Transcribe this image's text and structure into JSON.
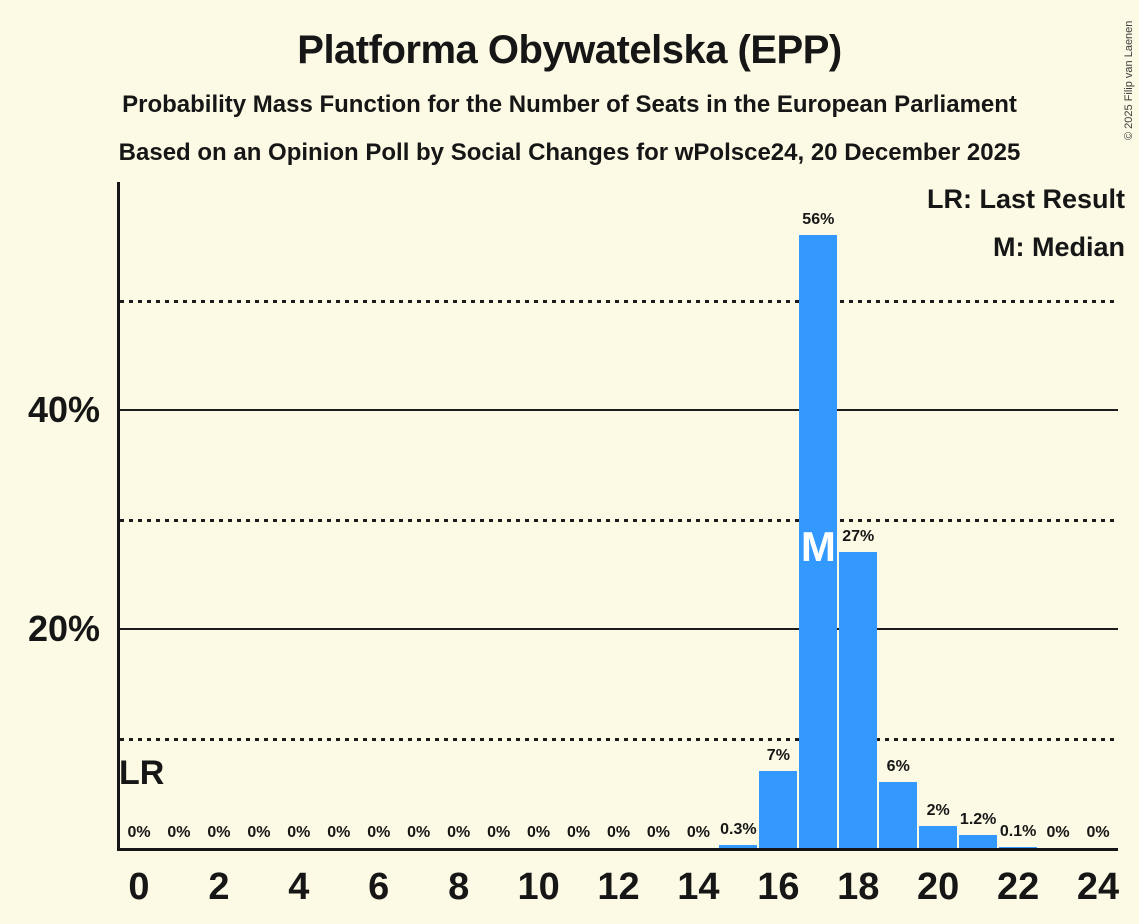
{
  "title": "Platforma Obywatelska (EPP)",
  "subtitle_line1": "Probability Mass Function for the Number of Seats in the European Parliament",
  "subtitle_line2": "Based on an Opinion Poll by Social Changes for wPolsce24, 20 December 2025",
  "legend": {
    "last_result": "LR: Last Result",
    "median": "M: Median"
  },
  "copyright": "© 2025 Filip van Laenen",
  "colors": {
    "background": "#FCF9E4",
    "bar": "#3399FF",
    "text": "#161616",
    "median_letter": "#FFFFFF"
  },
  "chart_data": {
    "type": "bar",
    "title": "Platforma Obywatelska (EPP)",
    "x": [
      0,
      1,
      2,
      3,
      4,
      5,
      6,
      7,
      8,
      9,
      10,
      11,
      12,
      13,
      14,
      15,
      16,
      17,
      18,
      19,
      20,
      21,
      22,
      23,
      24
    ],
    "values": [
      0,
      0,
      0,
      0,
      0,
      0,
      0,
      0,
      0,
      0,
      0,
      0,
      0,
      0,
      0,
      0.3,
      7,
      56,
      27,
      6,
      2,
      1.2,
      0.1,
      0,
      0
    ],
    "bar_labels": [
      "0%",
      "0%",
      "0%",
      "0%",
      "0%",
      "0%",
      "0%",
      "0%",
      "0%",
      "0%",
      "0%",
      "0%",
      "0%",
      "0%",
      "0%",
      "0.3%",
      "7%",
      "56%",
      "27%",
      "6%",
      "2%",
      "1.2%",
      "0.1%",
      "0%",
      "0%"
    ],
    "x_tick_labels": [
      "0",
      "2",
      "4",
      "6",
      "8",
      "10",
      "12",
      "14",
      "16",
      "18",
      "20",
      "22",
      "24"
    ],
    "y_axis": {
      "solid_gridlines": [
        {
          "value": 20,
          "label": "20%"
        },
        {
          "value": 40,
          "label": "40%"
        }
      ],
      "dotted_gridlines": [
        10,
        30,
        50
      ],
      "ylim": [
        0,
        61
      ],
      "unit": "%"
    },
    "annotations": {
      "lr_label": "LR",
      "median_label": "M",
      "median_seat": 17,
      "last_result_seat": 0
    }
  }
}
